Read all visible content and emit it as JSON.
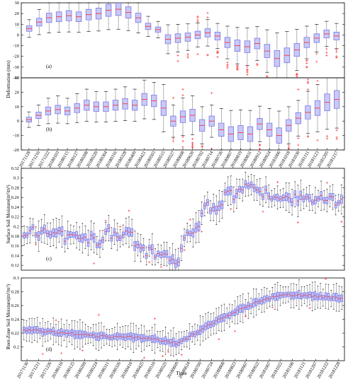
{
  "chart_data": [
    {
      "type": "box",
      "panel": "(a)",
      "ylabel": "Deformation (mm)",
      "ylim": [
        -40,
        30
      ],
      "yticks": [
        -40,
        -30,
        -20,
        -10,
        0,
        10,
        20,
        30
      ],
      "colors": {
        "box": "#7a7ae6",
        "median": "#ff3333",
        "outlier": "#ff3333",
        "whisker": "#000000"
      },
      "medians": [
        6,
        12,
        16,
        17,
        18,
        17,
        19,
        20,
        23,
        24,
        21,
        16,
        8,
        5,
        -4,
        -3,
        -2,
        0,
        2,
        -1,
        -7,
        -10,
        -11,
        -8,
        -15,
        -22,
        -19,
        -14,
        -7,
        -3,
        1,
        -1
      ]
    },
    {
      "type": "box",
      "panel": "(b)",
      "ylabel": "",
      "ylim": [
        -20,
        30
      ],
      "yticks": [
        -20,
        -10,
        0,
        10,
        20,
        30
      ],
      "colors": {
        "box": "#7a7ae6",
        "median": "#ff3333",
        "outlier": "#ff3333",
        "whisker": "#000000"
      },
      "medians": [
        1,
        4,
        7,
        8,
        7,
        9,
        11,
        10,
        10,
        11,
        12,
        11,
        15,
        14,
        9,
        0,
        3,
        4,
        -3,
        0,
        -6,
        -9,
        -8,
        -9,
        -2,
        -6,
        -10,
        -3,
        2,
        6,
        9,
        13,
        15
      ],
      "x_tick_labels": [
        "20171128",
        "20171210",
        "20171222",
        "20180103",
        "20180115",
        "20180127",
        "20180208",
        "20180220",
        "20180304",
        "20180316",
        "20180328",
        "20180409",
        "20180421",
        "20180503",
        "20180515",
        "20180527",
        "20180608",
        "20180620",
        "20180702",
        "20180714",
        "20180726",
        "20180807",
        "20180819",
        "20180831",
        "20180912",
        "20180924",
        "20181006",
        "20181018",
        "20181030",
        "20181111",
        "20181123",
        "20181205",
        "20181217"
      ]
    },
    {
      "type": "box",
      "panel": "(c)",
      "ylabel": "Surface Soil Moisture(m³/m³)",
      "ylim": [
        0.11,
        0.32
      ],
      "yticks": [
        0.12,
        0.14,
        0.16,
        0.18,
        0.2,
        0.22,
        0.24,
        0.26,
        0.28,
        0.3,
        0.32
      ],
      "colors": {
        "box": "#7a7ae6",
        "median": "#ff3333",
        "outlier": "#ff3333",
        "whisker": "#000000"
      },
      "profile": [
        [
          0,
          0.19
        ],
        [
          40,
          0.183
        ],
        [
          80,
          0.175
        ],
        [
          110,
          0.172
        ],
        [
          125,
          0.19
        ],
        [
          140,
          0.17
        ],
        [
          155,
          0.195
        ],
        [
          170,
          0.15
        ],
        [
          190,
          0.145
        ],
        [
          210,
          0.14
        ],
        [
          225,
          0.12
        ],
        [
          240,
          0.19
        ],
        [
          255,
          0.2
        ],
        [
          270,
          0.245
        ],
        [
          285,
          0.225
        ],
        [
          300,
          0.27
        ],
        [
          315,
          0.265
        ],
        [
          330,
          0.285
        ],
        [
          350,
          0.27
        ],
        [
          375,
          0.262
        ],
        [
          420,
          0.255
        ],
        [
          470,
          0.25
        ]
      ]
    },
    {
      "type": "box",
      "panel": "(d)",
      "ylabel": "Root-Zone Soil Moisture(m³/m³)",
      "ylim": [
        0.18,
        0.3
      ],
      "yticks": [
        0.2,
        0.22,
        0.24,
        0.26,
        0.28,
        0.3
      ],
      "colors": {
        "box": "#7a7ae6",
        "median": "#ff3333",
        "outlier": "#ff3333",
        "whisker": "#000000"
      },
      "profile": [
        [
          0,
          0.225
        ],
        [
          60,
          0.22
        ],
        [
          120,
          0.215
        ],
        [
          160,
          0.214
        ],
        [
          200,
          0.21
        ],
        [
          225,
          0.205
        ],
        [
          245,
          0.215
        ],
        [
          280,
          0.235
        ],
        [
          320,
          0.255
        ],
        [
          360,
          0.27
        ],
        [
          380,
          0.275
        ],
        [
          420,
          0.275
        ],
        [
          470,
          0.27
        ]
      ],
      "xlabel": "Time",
      "x_tick_labels": [
        "20171130",
        "20171211",
        "20171226",
        "20180110",
        "20180125",
        "20180209",
        "20180224",
        "20180311",
        "20180326",
        "20180410",
        "20180425",
        "20180510",
        "20180525",
        "20180609",
        "20180624",
        "20180709",
        "20180724",
        "20180808",
        "20180823",
        "20180907",
        "20180922",
        "20181007",
        "20181022",
        "20181106",
        "20181121",
        "20181207",
        "20181222",
        "20181228"
      ]
    }
  ]
}
